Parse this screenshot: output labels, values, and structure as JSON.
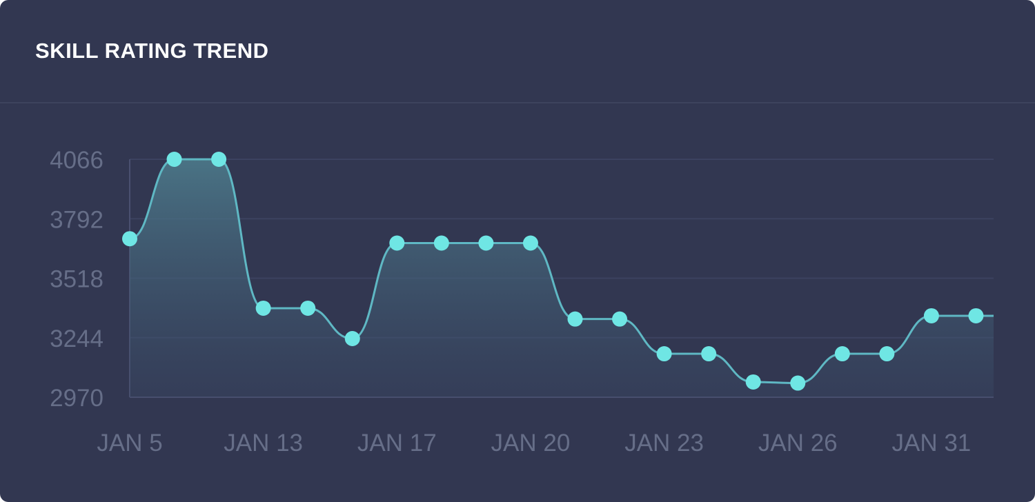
{
  "panel": {
    "title": "SKILL RATING TREND"
  },
  "colors": {
    "background": "#323751",
    "line": "#5fb8c4",
    "point": "#6fe6e4",
    "tick_text": "#666e88",
    "grid": "#3c4260"
  },
  "chart_data": {
    "type": "area",
    "title": "SKILL RATING TREND",
    "xlabel": "",
    "ylabel": "",
    "y_ticks": [
      2970,
      3244,
      3518,
      3792,
      4066
    ],
    "ylim": [
      2970,
      4066
    ],
    "x_tick_labels": [
      "JAN 5",
      "JAN 13",
      "JAN 17",
      "JAN 20",
      "JAN 23",
      "JAN 26",
      "JAN 31"
    ],
    "grid": true,
    "legend": "none",
    "values": [
      3700,
      4066,
      4066,
      3380,
      3380,
      3240,
      3680,
      3680,
      3680,
      3680,
      3330,
      3330,
      3170,
      3170,
      3040,
      3035,
      3170,
      3170,
      3345,
      3345
    ]
  }
}
